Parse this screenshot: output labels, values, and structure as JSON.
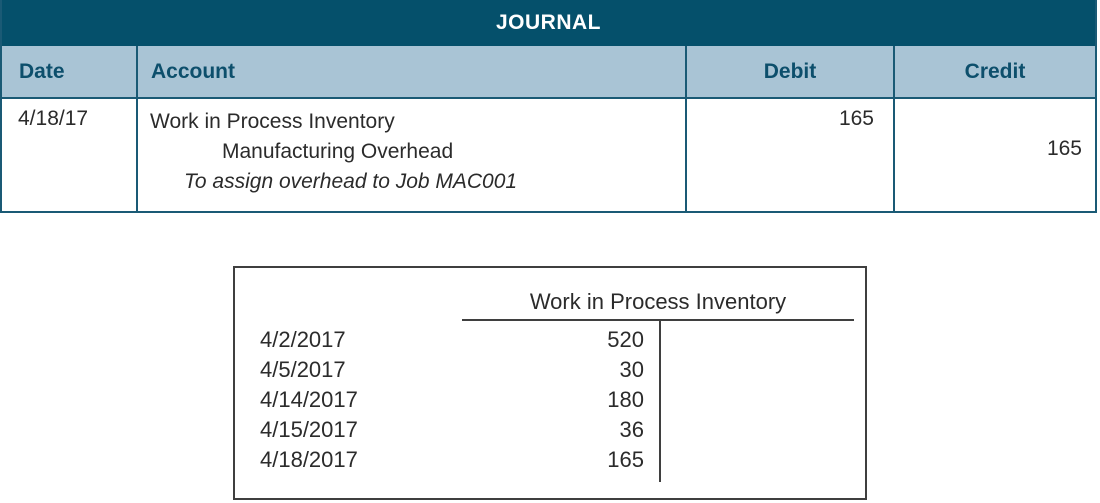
{
  "journal": {
    "title": "JOURNAL",
    "columns": {
      "date": "Date",
      "account": "Account",
      "debit": "Debit",
      "credit": "Credit"
    },
    "entry": {
      "date": "4/18/17",
      "debit_account": "Work in Process Inventory",
      "credit_account": "Manufacturing Overhead",
      "memo": "To assign overhead to Job MAC001",
      "debit_amount": "165",
      "credit_amount": "165"
    }
  },
  "t_account": {
    "title": "Work in Process Inventory",
    "entries": [
      {
        "date": "4/2/2017",
        "amount": "520"
      },
      {
        "date": "4/5/2017",
        "amount": "30"
      },
      {
        "date": "4/14/2017",
        "amount": "180"
      },
      {
        "date": "4/15/2017",
        "amount": "36"
      },
      {
        "date": "4/18/2017",
        "amount": "165"
      }
    ]
  },
  "colors": {
    "teal": "#05506B",
    "teal_border": "#1A5A75",
    "lightblue": "#A9C4D5",
    "header_text": "#0D4F6C",
    "body_text": "#2B2B2B",
    "taccount_line": "#3F3F3F"
  }
}
